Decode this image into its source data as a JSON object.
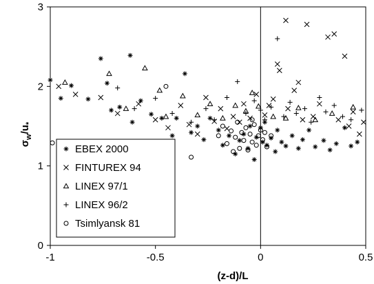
{
  "chart_data": {
    "type": "scatter",
    "xlabel": "(z-d)/L",
    "ylabel": "σw/u*",
    "xlim": [
      -1,
      0.5
    ],
    "ylim": [
      0,
      3
    ],
    "x_ticks": [
      "-1",
      "-0.5",
      "0",
      "0.5"
    ],
    "y_ticks": [
      "0",
      "1",
      "2",
      "3"
    ],
    "grid": false,
    "vertical_reference_line_x": 0,
    "legend_position": "bottom-left",
    "series": [
      {
        "name": "EBEX 2000",
        "marker": "asterisk",
        "points": [
          [
            -1.0,
            2.08
          ],
          [
            -0.95,
            1.85
          ],
          [
            -0.9,
            2.01
          ],
          [
            -0.82,
            1.84
          ],
          [
            -0.76,
            2.35
          ],
          [
            -0.73,
            2.04
          ],
          [
            -0.71,
            1.7
          ],
          [
            -0.67,
            1.74
          ],
          [
            -0.62,
            2.39
          ],
          [
            -0.61,
            1.55
          ],
          [
            -0.57,
            1.82
          ],
          [
            -0.52,
            1.65
          ],
          [
            -0.47,
            1.6
          ],
          [
            -0.42,
            1.38
          ],
          [
            -0.4,
            1.6
          ],
          [
            -0.36,
            2.16
          ],
          [
            -0.33,
            1.42
          ],
          [
            -0.3,
            1.5
          ],
          [
            -0.27,
            1.33
          ],
          [
            -0.24,
            1.6
          ],
          [
            -0.2,
            1.45
          ],
          [
            -0.18,
            1.26
          ],
          [
            -0.15,
            1.38
          ],
          [
            -0.12,
            1.15
          ],
          [
            -0.1,
            1.32
          ],
          [
            -0.08,
            1.4
          ],
          [
            -0.06,
            1.22
          ],
          [
            -0.05,
            1.5
          ],
          [
            -0.03,
            1.08
          ],
          [
            -0.02,
            1.36
          ],
          [
            0.0,
            1.48
          ],
          [
            0.01,
            1.3
          ],
          [
            0.02,
            1.55
          ],
          [
            0.03,
            1.26
          ],
          [
            0.05,
            1.35
          ],
          [
            0.07,
            1.18
          ],
          [
            0.08,
            1.45
          ],
          [
            0.1,
            1.3
          ],
          [
            0.12,
            1.25
          ],
          [
            0.15,
            1.38
          ],
          [
            0.18,
            1.22
          ],
          [
            0.2,
            1.33
          ],
          [
            0.23,
            1.45
          ],
          [
            0.26,
            1.24
          ],
          [
            0.3,
            1.32
          ],
          [
            0.33,
            1.2
          ],
          [
            0.36,
            1.28
          ],
          [
            0.4,
            1.48
          ],
          [
            0.43,
            1.25
          ],
          [
            0.46,
            1.3
          ]
        ]
      },
      {
        "name": "FINTUREX 94",
        "marker": "x",
        "points": [
          [
            -0.96,
            2.0
          ],
          [
            -0.88,
            1.9
          ],
          [
            -0.76,
            1.86
          ],
          [
            -0.68,
            1.66
          ],
          [
            -0.58,
            1.78
          ],
          [
            -0.5,
            1.58
          ],
          [
            -0.44,
            1.48
          ],
          [
            -0.38,
            1.76
          ],
          [
            -0.34,
            1.52
          ],
          [
            -0.3,
            1.4
          ],
          [
            -0.26,
            1.86
          ],
          [
            -0.22,
            1.56
          ],
          [
            -0.19,
            1.72
          ],
          [
            -0.16,
            1.47
          ],
          [
            -0.13,
            1.62
          ],
          [
            -0.1,
            1.55
          ],
          [
            -0.08,
            1.78
          ],
          [
            -0.05,
            1.6
          ],
          [
            -0.02,
            1.9
          ],
          [
            0.02,
            1.64
          ],
          [
            0.04,
            1.76
          ],
          [
            0.06,
            1.84
          ],
          [
            0.08,
            2.28
          ],
          [
            0.09,
            2.2
          ],
          [
            0.12,
            2.83
          ],
          [
            0.13,
            1.72
          ],
          [
            0.16,
            1.95
          ],
          [
            0.18,
            2.05
          ],
          [
            0.2,
            1.58
          ],
          [
            0.22,
            2.78
          ],
          [
            0.25,
            1.62
          ],
          [
            0.28,
            1.78
          ],
          [
            0.32,
            2.62
          ],
          [
            0.35,
            2.66
          ],
          [
            0.37,
            1.58
          ],
          [
            0.4,
            2.38
          ],
          [
            0.42,
            1.5
          ],
          [
            0.44,
            1.68
          ],
          [
            0.47,
            1.4
          ],
          [
            0.49,
            1.55
          ]
        ]
      },
      {
        "name": "LINEX 97/1",
        "marker": "triangle",
        "points": [
          [
            -0.93,
            2.05
          ],
          [
            -0.72,
            2.16
          ],
          [
            -0.64,
            1.72
          ],
          [
            -0.55,
            2.23
          ],
          [
            -0.48,
            1.95
          ],
          [
            -0.45,
            1.62
          ],
          [
            -0.37,
            1.88
          ],
          [
            -0.3,
            1.64
          ],
          [
            -0.24,
            1.78
          ],
          [
            -0.18,
            1.6
          ],
          [
            -0.12,
            1.76
          ],
          [
            -0.07,
            1.69
          ],
          [
            -0.04,
            1.92
          ],
          [
            -0.01,
            1.75
          ],
          [
            0.06,
            1.62
          ],
          [
            0.12,
            1.6
          ],
          [
            0.18,
            1.73
          ],
          [
            0.26,
            1.58
          ],
          [
            0.34,
            1.66
          ],
          [
            0.44,
            1.74
          ]
        ]
      },
      {
        "name": "LINEX 96/2",
        "marker": "plus",
        "points": [
          [
            -0.68,
            1.98
          ],
          [
            -0.6,
            1.72
          ],
          [
            -0.5,
            1.85
          ],
          [
            -0.42,
            1.66
          ],
          [
            -0.33,
            1.55
          ],
          [
            -0.26,
            1.72
          ],
          [
            -0.22,
            1.58
          ],
          [
            -0.16,
            1.86
          ],
          [
            -0.11,
            2.06
          ],
          [
            -0.07,
            1.66
          ],
          [
            -0.03,
            1.82
          ],
          [
            0.0,
            1.7
          ],
          [
            0.02,
            1.58
          ],
          [
            0.05,
            1.74
          ],
          [
            0.08,
            2.6
          ],
          [
            0.11,
            1.62
          ],
          [
            0.14,
            1.8
          ],
          [
            0.17,
            1.66
          ],
          [
            0.21,
            1.72
          ],
          [
            0.24,
            1.55
          ],
          [
            0.28,
            1.86
          ],
          [
            0.31,
            1.68
          ],
          [
            0.35,
            1.76
          ],
          [
            0.39,
            1.62
          ],
          [
            0.43,
            1.58
          ],
          [
            0.48,
            1.7
          ]
        ]
      },
      {
        "name": "Tsimlyansk 81",
        "marker": "circle",
        "points": [
          [
            -0.99,
            1.29
          ],
          [
            -0.45,
            2.0
          ],
          [
            -0.33,
            1.11
          ],
          [
            -0.2,
            1.38
          ],
          [
            -0.18,
            1.5
          ],
          [
            -0.16,
            1.28
          ],
          [
            -0.14,
            1.44
          ],
          [
            -0.12,
            1.36
          ],
          [
            -0.11,
            1.55
          ],
          [
            -0.1,
            1.22
          ],
          [
            -0.09,
            1.42
          ],
          [
            -0.08,
            1.32
          ],
          [
            -0.07,
            1.48
          ],
          [
            -0.06,
            1.2
          ],
          [
            -0.05,
            1.4
          ],
          [
            -0.04,
            1.3
          ],
          [
            -0.03,
            1.52
          ],
          [
            -0.02,
            1.26
          ],
          [
            -0.01,
            1.38
          ],
          [
            0.0,
            1.45
          ],
          [
            0.01,
            1.33
          ],
          [
            0.02,
            1.42
          ],
          [
            0.03,
            1.24
          ],
          [
            0.05,
            1.38
          ],
          [
            -0.04,
            1.58
          ],
          [
            -0.13,
            1.18
          ]
        ]
      }
    ]
  }
}
